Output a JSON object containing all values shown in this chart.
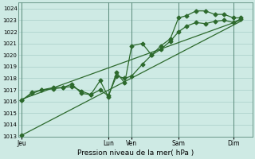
{
  "xlabel": "Pression niveau de la mer( hPa )",
  "ylim": [
    1013,
    1024.5
  ],
  "yticks": [
    1013,
    1014,
    1015,
    1016,
    1017,
    1018,
    1019,
    1020,
    1021,
    1022,
    1023,
    1024
  ],
  "xlim": [
    0,
    10.0
  ],
  "background_color": "#ceeae4",
  "grid_color": "#a8cec8",
  "line_color": "#2d6a2d",
  "separator_color": "#5a8a7a",
  "x_day_labels": [
    "Jeu",
    "Lun",
    "Ven",
    "Sam",
    "Dim"
  ],
  "x_day_positions": [
    0.15,
    3.85,
    4.85,
    6.85,
    9.2
  ],
  "x_sep_positions": [
    0.15,
    3.85,
    4.85,
    6.85,
    9.2
  ],
  "trend_x": [
    0.15,
    9.5
  ],
  "trend_y": [
    1013.1,
    1022.9
  ],
  "line1_x": [
    0.15,
    0.6,
    1.0,
    1.5,
    1.9,
    2.3,
    2.7,
    3.1,
    3.5,
    3.85,
    4.2,
    4.55,
    4.85,
    5.3,
    5.7,
    6.1,
    6.5,
    6.85,
    7.2,
    7.6,
    8.0,
    8.4,
    8.8,
    9.2,
    9.5
  ],
  "line1_y": [
    1016.1,
    1016.7,
    1017.0,
    1017.1,
    1017.2,
    1017.3,
    1016.9,
    1016.6,
    1017.0,
    1016.5,
    1018.2,
    1018.0,
    1018.2,
    1019.2,
    1020.0,
    1020.5,
    1021.2,
    1022.0,
    1022.5,
    1022.8,
    1022.7,
    1022.9,
    1023.0,
    1022.8,
    1023.1
  ],
  "line2_x": [
    0.15,
    0.6,
    1.0,
    1.5,
    1.9,
    2.3,
    2.7,
    3.1,
    3.5,
    3.85,
    4.2,
    4.55,
    4.85,
    5.3,
    5.7,
    6.1,
    6.5,
    6.85,
    7.2,
    7.6,
    8.0,
    8.4,
    8.8,
    9.2,
    9.5
  ],
  "line2_y": [
    1016.1,
    1016.8,
    1017.0,
    1017.2,
    1017.2,
    1017.5,
    1016.7,
    1016.6,
    1017.8,
    1016.4,
    1018.5,
    1017.6,
    1020.8,
    1021.0,
    1020.0,
    1020.8,
    1021.4,
    1023.2,
    1023.4,
    1023.8,
    1023.8,
    1023.5,
    1023.5,
    1023.2,
    1023.2
  ],
  "trend2_x": [
    0.15,
    9.5
  ],
  "trend2_y": [
    1016.2,
    1023.0
  ],
  "marker_size": 2.5,
  "linewidth": 0.9
}
